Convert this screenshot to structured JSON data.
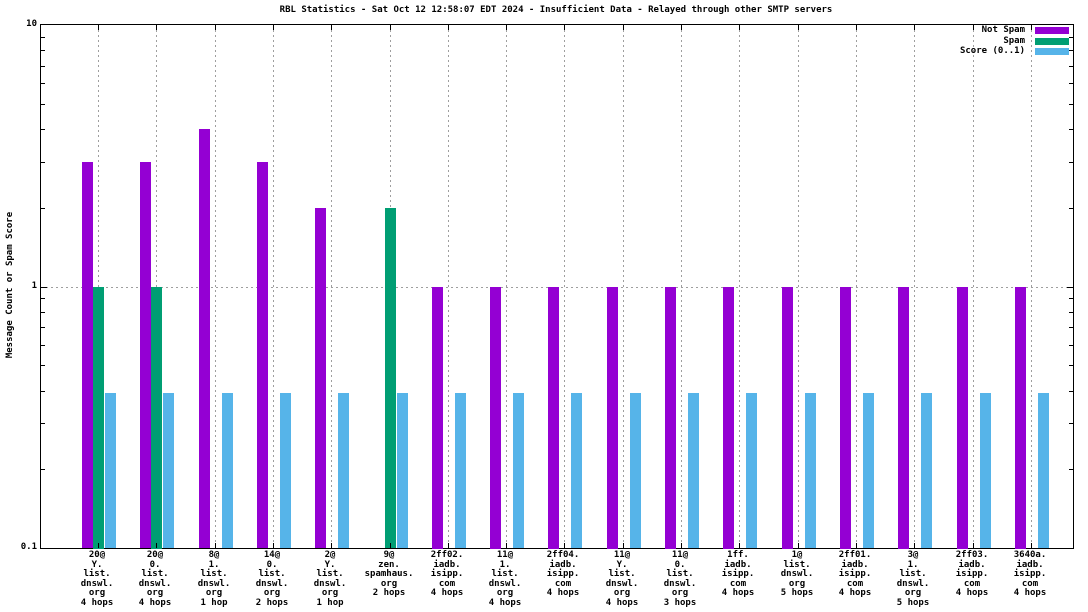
{
  "title": "RBL Statistics - Sat Oct 12 12:58:07 EDT 2024 - Insufficient Data - Relayed through other SMTP servers",
  "ylabel": "Message Count or Spam Score",
  "colors": {
    "not_spam": "#9400d3",
    "spam": "#009e73",
    "score": "#56b4e9",
    "grid": "#9e9e9e",
    "axis": "#000000",
    "background": "#ffffff"
  },
  "chart_data": {
    "type": "bar",
    "title": "RBL Statistics - Sat Oct 12 12:58:07 EDT 2024 - Insufficient Data - Relayed through other SMTP servers",
    "xlabel": "",
    "ylabel": "Message Count or Spam Score",
    "yscale": "log",
    "ylim": [
      0.1,
      10
    ],
    "ytick_labels": [
      {
        "label": "10",
        "value": 10
      },
      {
        "label": "1",
        "value": 1
      },
      {
        "label": "0.1",
        "value": 0.1
      }
    ],
    "grid": true,
    "gridline_y_values": [
      1
    ],
    "legend_position": "top-right-inside",
    "legend": [
      {
        "label": "Not Spam",
        "color": "#9400d3"
      },
      {
        "label": "Spam",
        "color": "#009e73"
      },
      {
        "label": "Score (0..1)",
        "color": "#56b4e9"
      }
    ],
    "categories": [
      {
        "lines": [
          "20@",
          "Y.",
          "list.",
          "dnswl.",
          "org",
          "4 hops"
        ]
      },
      {
        "lines": [
          "20@",
          "0.",
          "list.",
          "dnswl.",
          "org",
          "4 hops"
        ]
      },
      {
        "lines": [
          "8@",
          "1.",
          "list.",
          "dnswl.",
          "org",
          "1 hop"
        ]
      },
      {
        "lines": [
          "14@",
          "0.",
          "list.",
          "dnswl.",
          "org",
          "2 hops"
        ]
      },
      {
        "lines": [
          "2@",
          "Y.",
          "list.",
          "dnswl.",
          "org",
          "1 hop"
        ]
      },
      {
        "lines": [
          "9@",
          "zen.",
          "spamhaus.",
          "org",
          "2 hops"
        ]
      },
      {
        "lines": [
          "2ff02.",
          "iadb.",
          "isipp.",
          "com",
          "4 hops"
        ]
      },
      {
        "lines": [
          "11@",
          "1.",
          "list.",
          "dnswl.",
          "org",
          "4 hops"
        ]
      },
      {
        "lines": [
          "2ff04.",
          "iadb.",
          "isipp.",
          "com",
          "4 hops"
        ]
      },
      {
        "lines": [
          "11@",
          "Y.",
          "list.",
          "dnswl.",
          "org",
          "4 hops"
        ]
      },
      {
        "lines": [
          "11@",
          "0.",
          "list.",
          "dnswl.",
          "org",
          "3 hops"
        ]
      },
      {
        "lines": [
          "1ff.",
          "iadb.",
          "isipp.",
          "com",
          "4 hops"
        ]
      },
      {
        "lines": [
          "1@",
          "list.",
          "dnswl.",
          "org",
          "5 hops"
        ]
      },
      {
        "lines": [
          "2ff01.",
          "iadb.",
          "isipp.",
          "com",
          "4 hops"
        ]
      },
      {
        "lines": [
          "3@",
          "1.",
          "list.",
          "dnswl.",
          "org",
          "5 hops"
        ]
      },
      {
        "lines": [
          "2ff03.",
          "iadb.",
          "isipp.",
          "com",
          "4 hops"
        ]
      },
      {
        "lines": [
          "3640a.",
          "iadb.",
          "isipp.",
          "com",
          "4 hops"
        ]
      }
    ],
    "series": [
      {
        "name": "Not Spam",
        "color": "#9400d3",
        "values": [
          3,
          3,
          4,
          3,
          2,
          null,
          1,
          1,
          1,
          1,
          1,
          1,
          1,
          1,
          1,
          1,
          1
        ]
      },
      {
        "name": "Spam",
        "color": "#009e73",
        "values": [
          1,
          1,
          null,
          null,
          null,
          2,
          null,
          null,
          null,
          null,
          null,
          null,
          null,
          null,
          null,
          null,
          null
        ]
      },
      {
        "name": "Score (0..1)",
        "color": "#56b4e9",
        "values": [
          0.39,
          0.39,
          0.39,
          0.39,
          0.39,
          0.39,
          0.39,
          0.39,
          0.39,
          0.39,
          0.39,
          0.39,
          0.39,
          0.39,
          0.39,
          0.39,
          0.39
        ]
      }
    ]
  }
}
